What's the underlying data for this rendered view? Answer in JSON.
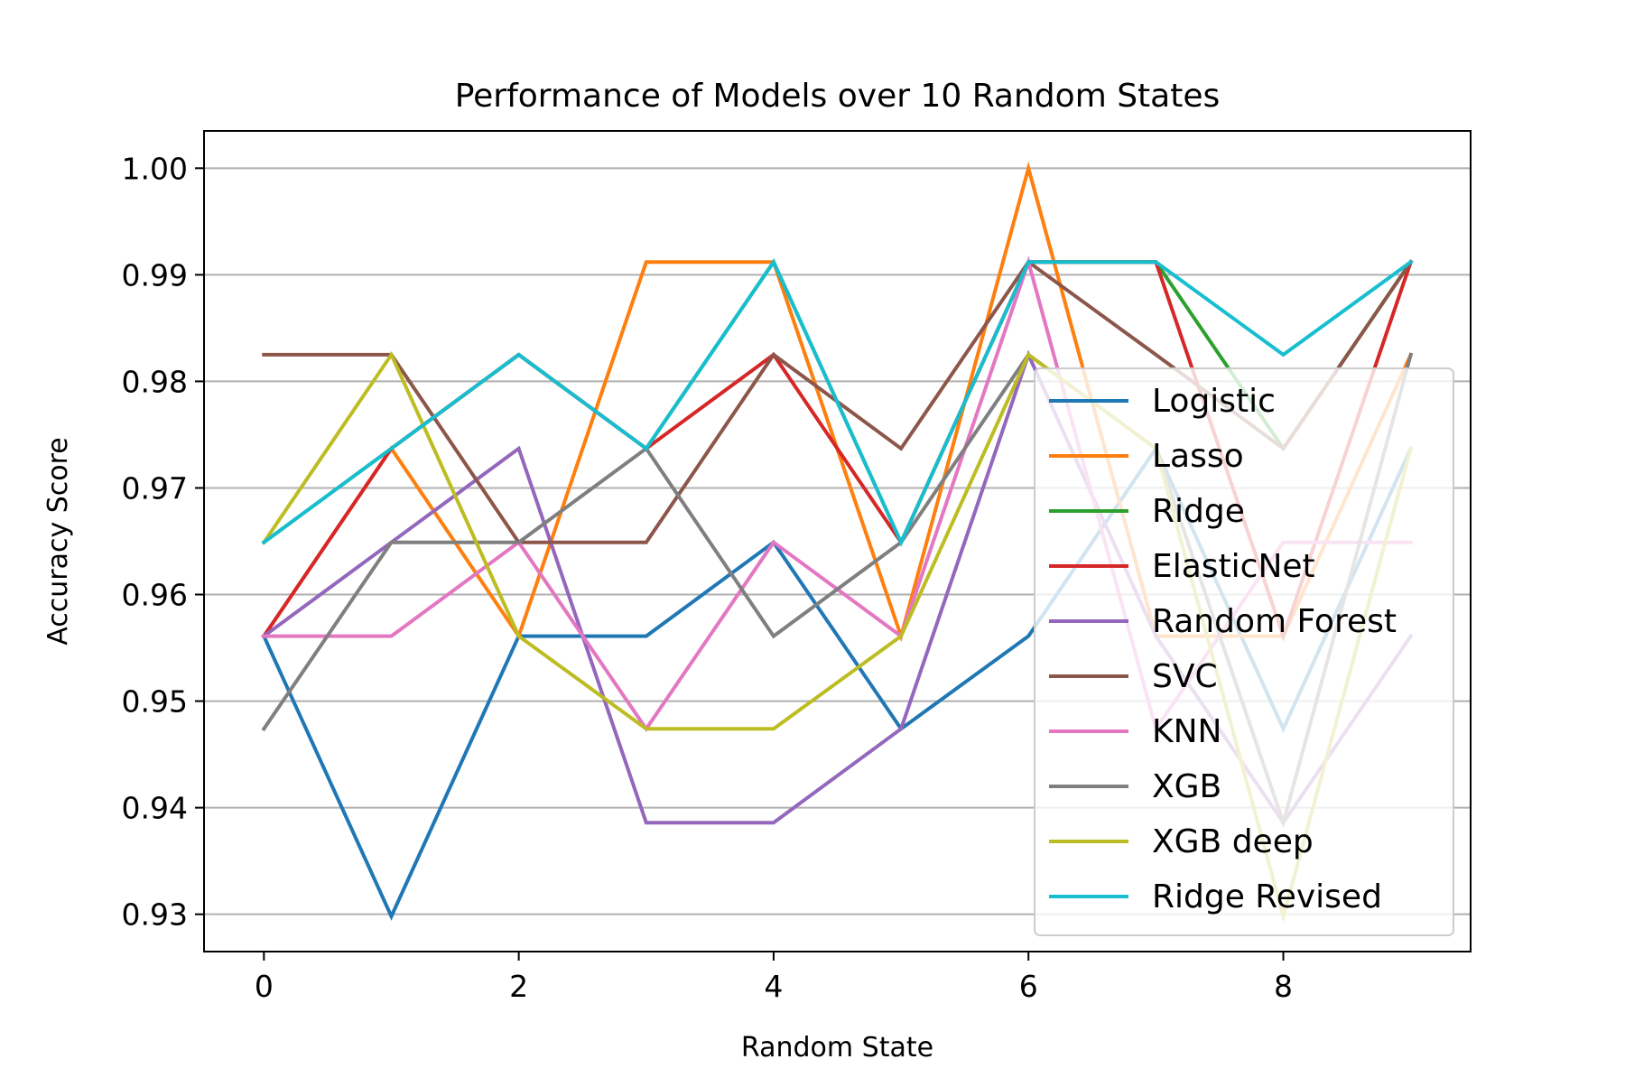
{
  "chart_data": {
    "type": "line",
    "title": "Performance of Models over 10 Random States",
    "xlabel": "Random State",
    "ylabel": "Accuracy Score",
    "x": [
      0,
      1,
      2,
      3,
      4,
      5,
      6,
      7,
      8,
      9
    ],
    "xlim": [
      -0.47,
      9.47
    ],
    "ylim": [
      0.9265,
      1.0035
    ],
    "x_ticks": [
      0,
      2,
      4,
      6,
      8
    ],
    "x_tick_labels": [
      "0",
      "2",
      "4",
      "6",
      "8"
    ],
    "y_ticks": [
      0.93,
      0.94,
      0.95,
      0.96,
      0.97,
      0.98,
      0.99,
      1.0
    ],
    "y_tick_labels": [
      "0.93",
      "0.94",
      "0.95",
      "0.96",
      "0.97",
      "0.98",
      "0.99",
      "1.00"
    ],
    "grid": "horizontal",
    "legend_position": "lower-right",
    "series": [
      {
        "name": "Logistic",
        "color": "#1f77b4",
        "values": [
          0.9561,
          0.9298,
          0.9561,
          0.9561,
          0.9649,
          0.9474,
          0.9561,
          0.9737,
          0.9474,
          0.9737
        ]
      },
      {
        "name": "Lasso",
        "color": "#ff7f0e",
        "values": [
          0.9561,
          0.9737,
          0.9561,
          0.9912,
          0.9912,
          0.9561,
          1.0,
          0.9561,
          0.9561,
          0.9825
        ]
      },
      {
        "name": "Ridge",
        "color": "#2ca02c",
        "values": [
          0.9649,
          0.9737,
          0.9825,
          0.9737,
          0.9912,
          0.9649,
          0.9912,
          0.9912,
          0.9737,
          0.9912
        ]
      },
      {
        "name": "ElasticNet",
        "color": "#d62728",
        "values": [
          0.9561,
          0.9737,
          0.9825,
          0.9737,
          0.9825,
          0.9649,
          0.9912,
          0.9912,
          0.9561,
          0.9912
        ]
      },
      {
        "name": "Random Forest",
        "color": "#9467bd",
        "values": [
          0.9561,
          0.9649,
          0.9737,
          0.9386,
          0.9386,
          0.9474,
          0.9825,
          0.9561,
          0.9386,
          0.9561
        ]
      },
      {
        "name": "SVC",
        "color": "#8c564b",
        "values": [
          0.9825,
          0.9825,
          0.9649,
          0.9649,
          0.9825,
          0.9737,
          0.9912,
          0.9825,
          0.9737,
          0.9912
        ]
      },
      {
        "name": "KNN",
        "color": "#e377c2",
        "values": [
          0.9561,
          0.9561,
          0.9649,
          0.9474,
          0.9649,
          0.9561,
          0.9912,
          0.9474,
          0.9649,
          0.9649
        ]
      },
      {
        "name": "XGB",
        "color": "#7f7f7f",
        "values": [
          0.9474,
          0.9649,
          0.9649,
          0.9737,
          0.9561,
          0.9649,
          0.9825,
          0.9737,
          0.9386,
          0.9825
        ]
      },
      {
        "name": "XGB deep",
        "color": "#bcbd22",
        "values": [
          0.9649,
          0.9825,
          0.9561,
          0.9474,
          0.9474,
          0.9561,
          0.9825,
          0.9737,
          0.9298,
          0.9737
        ]
      },
      {
        "name": "Ridge Revised",
        "color": "#17becf",
        "values": [
          0.9649,
          0.9737,
          0.9825,
          0.9737,
          0.9912,
          0.9649,
          0.9912,
          0.9912,
          0.9825,
          0.9912
        ]
      }
    ]
  }
}
